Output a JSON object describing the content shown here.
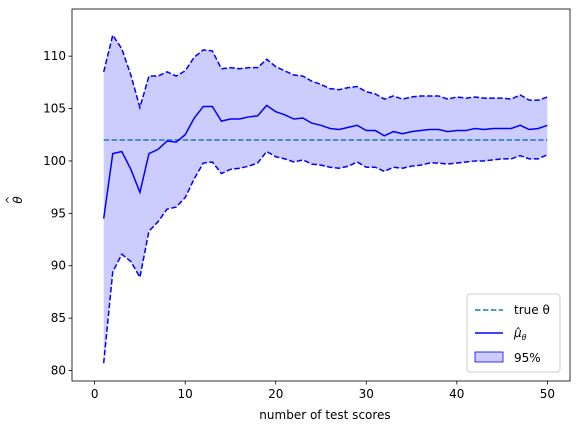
{
  "chart_data": {
    "type": "line",
    "xlabel": "number of test scores",
    "ylabel": "θ̂",
    "xlim": [
      -2.5,
      52.5
    ],
    "ylim": [
      79,
      114.5
    ],
    "xticks": [
      0,
      10,
      20,
      30,
      40,
      50
    ],
    "yticks": [
      80,
      85,
      90,
      95,
      100,
      105,
      110
    ],
    "grid": false,
    "legend_position": "lower-right",
    "colors": {
      "true_theta": "#1f77b4",
      "mean": "#0000ff",
      "band_fill": "#ccccff",
      "band_edge": "#0000ff"
    },
    "x": [
      1,
      2,
      3,
      4,
      5,
      6,
      7,
      8,
      9,
      10,
      11,
      12,
      13,
      14,
      15,
      16,
      17,
      18,
      19,
      20,
      21,
      22,
      23,
      24,
      25,
      26,
      27,
      28,
      29,
      30,
      31,
      32,
      33,
      34,
      35,
      36,
      37,
      38,
      39,
      40,
      41,
      42,
      43,
      44,
      45,
      46,
      47,
      48,
      49,
      50
    ],
    "series": [
      {
        "name": "true θ",
        "style": "dashed",
        "x": [
          1,
          50
        ],
        "values": [
          102,
          102
        ]
      },
      {
        "name": "μ̂_θ",
        "style": "solid",
        "values": [
          94.5,
          100.7,
          100.9,
          99.2,
          97.0,
          100.7,
          101.1,
          101.9,
          101.8,
          102.5,
          104.1,
          105.2,
          105.2,
          103.8,
          104.0,
          104.0,
          104.2,
          104.3,
          105.3,
          104.7,
          104.4,
          104.0,
          104.1,
          103.6,
          103.4,
          103.1,
          103.0,
          103.2,
          103.4,
          102.9,
          102.9,
          102.4,
          102.8,
          102.6,
          102.8,
          102.9,
          103.0,
          103.0,
          102.8,
          102.9,
          102.9,
          103.1,
          103.0,
          103.1,
          103.1,
          103.1,
          103.4,
          103.0,
          103.1,
          103.4
        ]
      },
      {
        "name": "95%",
        "style": "band",
        "upper": [
          108.5,
          112.0,
          110.7,
          108.2,
          105.1,
          108.1,
          108.1,
          108.5,
          108.1,
          108.6,
          109.9,
          110.6,
          110.5,
          108.8,
          108.9,
          108.8,
          108.9,
          108.9,
          109.7,
          109.0,
          108.6,
          108.2,
          108.1,
          107.6,
          107.3,
          106.9,
          106.8,
          107.0,
          107.1,
          106.6,
          106.4,
          105.9,
          106.2,
          105.9,
          106.1,
          106.2,
          106.2,
          106.2,
          105.9,
          106.1,
          106.0,
          106.1,
          106.0,
          106.0,
          106.0,
          105.9,
          106.3,
          105.8,
          105.8,
          106.1
        ],
        "lower": [
          80.7,
          89.4,
          91.1,
          90.4,
          88.9,
          93.3,
          94.2,
          95.4,
          95.6,
          96.5,
          98.3,
          99.8,
          99.9,
          98.8,
          99.2,
          99.3,
          99.5,
          99.8,
          100.9,
          100.4,
          100.2,
          99.9,
          100.1,
          99.7,
          99.6,
          99.4,
          99.3,
          99.5,
          99.9,
          99.4,
          99.4,
          99.0,
          99.4,
          99.3,
          99.5,
          99.6,
          99.8,
          99.8,
          99.7,
          99.8,
          99.9,
          100.0,
          100.0,
          100.1,
          100.2,
          100.2,
          100.5,
          100.2,
          100.2,
          100.6
        ]
      }
    ],
    "legend": {
      "true_theta_label": "true θ",
      "mean_label": "μ̂",
      "mean_subscript": "θ",
      "band_label": "95%"
    }
  }
}
